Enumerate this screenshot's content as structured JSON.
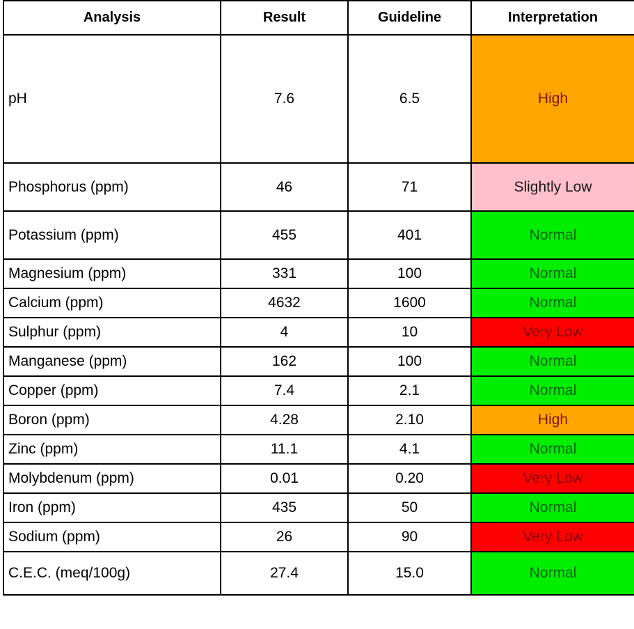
{
  "header": {
    "analysis": "Analysis",
    "result": "Result",
    "guideline": "Guideline",
    "interpretation": "Interpretation"
  },
  "rows": [
    {
      "analysis": "pH",
      "result": "7.6",
      "guideline": "6.5",
      "interpretation": "High",
      "color": "#ffa500",
      "text_color": "#7a1a00"
    },
    {
      "analysis": "Phosphorus (ppm)",
      "result": "46",
      "guideline": "71",
      "interpretation": "Slightly Low",
      "color": "#ffc0cb",
      "text_color": "#1a1a1a"
    },
    {
      "analysis": "Potassium (ppm)",
      "result": "455",
      "guideline": "401",
      "interpretation": "Normal",
      "color": "#00ee00",
      "text_color": "#006400"
    },
    {
      "analysis": "Magnesium (ppm)",
      "result": "331",
      "guideline": "100",
      "interpretation": "Normal",
      "color": "#00ee00",
      "text_color": "#006400"
    },
    {
      "analysis": "Calcium (ppm)",
      "result": "4632",
      "guideline": "1600",
      "interpretation": "Normal",
      "color": "#00ee00",
      "text_color": "#006400"
    },
    {
      "analysis": "Sulphur (ppm)",
      "result": "4",
      "guideline": "10",
      "interpretation": "Very Low",
      "color": "#ff0000",
      "text_color": "#8b0000"
    },
    {
      "analysis": "Manganese (ppm)",
      "result": "162",
      "guideline": "100",
      "interpretation": "Normal",
      "color": "#00ee00",
      "text_color": "#006400"
    },
    {
      "analysis": "Copper (ppm)",
      "result": "7.4",
      "guideline": "2.1",
      "interpretation": "Normal",
      "color": "#00ee00",
      "text_color": "#006400"
    },
    {
      "analysis": "Boron (ppm)",
      "result": "4.28",
      "guideline": "2.10",
      "interpretation": "High",
      "color": "#ffa500",
      "text_color": "#7a1a00"
    },
    {
      "analysis": "Zinc (ppm)",
      "result": "11.1",
      "guideline": "4.1",
      "interpretation": "Normal",
      "color": "#00ee00",
      "text_color": "#006400"
    },
    {
      "analysis": "Molybdenum (ppm)",
      "result": "0.01",
      "guideline": "0.20",
      "interpretation": "Very Low",
      "color": "#ff0000",
      "text_color": "#8b0000"
    },
    {
      "analysis": "Iron (ppm)",
      "result": "435",
      "guideline": "50",
      "interpretation": "Normal",
      "color": "#00ee00",
      "text_color": "#006400"
    },
    {
      "analysis": "Sodium (ppm)",
      "result": "26",
      "guideline": "90",
      "interpretation": "Very Low",
      "color": "#ff0000",
      "text_color": "#8b0000"
    },
    {
      "analysis": "C.E.C. (meq/100g)",
      "result": "27.4",
      "guideline": "15.0",
      "interpretation": "Normal",
      "color": "#00ee00",
      "text_color": "#006400"
    }
  ]
}
